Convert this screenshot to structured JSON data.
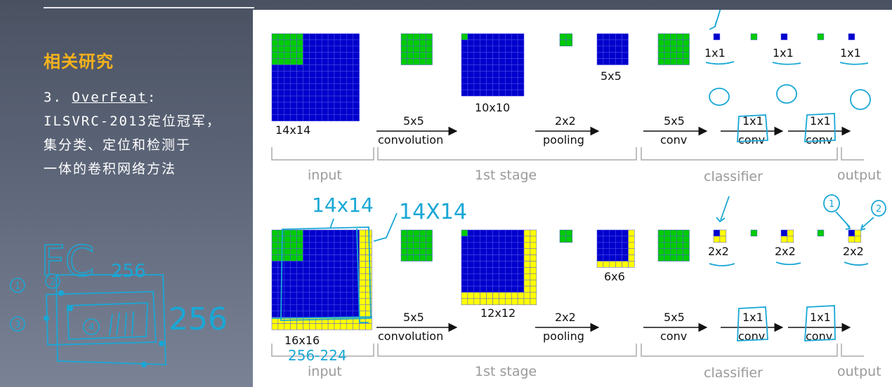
{
  "slide": {
    "heading": "相关研究",
    "item_number": "3.",
    "item_name": "OverFeat",
    "item_colon": ":",
    "lines": [
      "ILSVRC-2013定位冠军，",
      "集分类、定位和检测于",
      "一体的卷积网络方法"
    ]
  },
  "diagram_top": {
    "sizes": {
      "input": "14x14",
      "conv_out": "10x10",
      "pool_out": "5x5",
      "o1": "1x1",
      "o2": "1x1",
      "o3": "1x1"
    },
    "ops": [
      {
        "size": "5x5",
        "name": "convolution"
      },
      {
        "size": "2x2",
        "name": "pooling"
      },
      {
        "size": "5x5",
        "name": "conv"
      },
      {
        "size": "1x1",
        "name": "conv"
      },
      {
        "size": "1x1",
        "name": "conv"
      }
    ],
    "stages": {
      "input": "input",
      "stage1": "1st stage",
      "classifier": "classifier",
      "output": "output"
    }
  },
  "diagram_bottom": {
    "sizes": {
      "input": "16x16",
      "conv_out": "12x12",
      "pool_out": "6x6",
      "o1": "2x2",
      "o2": "2x2",
      "o3": "2x2"
    },
    "ops": [
      {
        "size": "5x5",
        "name": "convolution"
      },
      {
        "size": "2x2",
        "name": "pooling"
      },
      {
        "size": "5x5",
        "name": "conv"
      },
      {
        "size": "1x1",
        "name": "conv"
      },
      {
        "size": "1x1",
        "name": "conv"
      }
    ],
    "stages": {
      "input": "input",
      "stage1": "1st stage",
      "classifier": "classifier",
      "output": "output"
    }
  },
  "annotations": {
    "top_left": "14x14",
    "top_right": "14X14",
    "under_input": "256-224",
    "fc": "FC",
    "fc_num": "256",
    "side_num": "256",
    "circle_1": "1",
    "circle_2": "2",
    "circle_3": "3",
    "circle_4": "4",
    "out_circle_1": "1",
    "out_circle_2": "2"
  },
  "colors": {
    "blue": "#0000cc",
    "green": "#00cc00",
    "yellow": "#ffff00",
    "annotation": "#19a7d6",
    "heading": "#f5b21b"
  }
}
